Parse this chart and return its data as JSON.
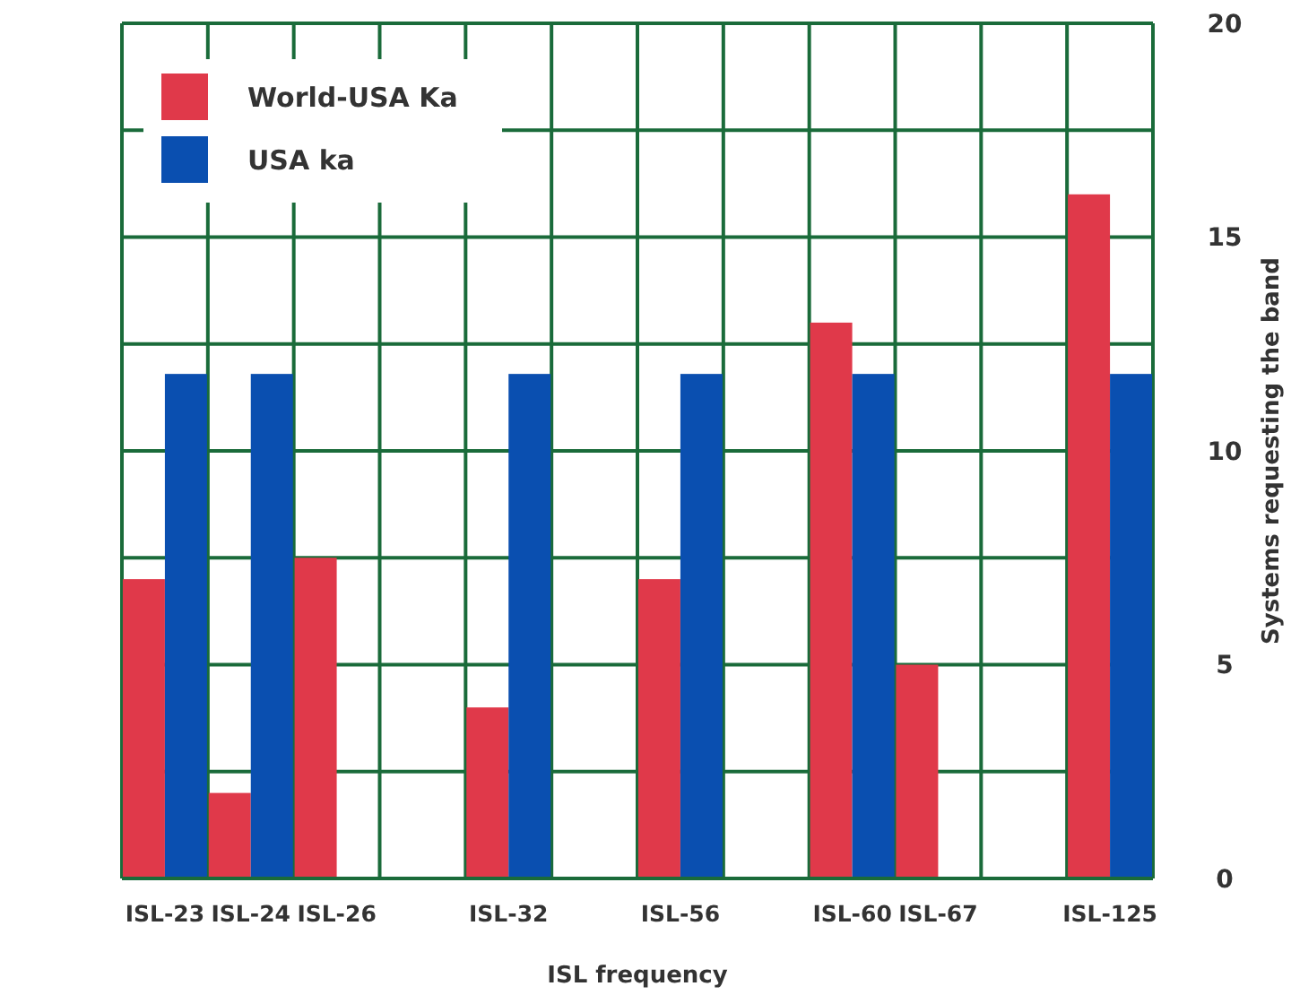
{
  "chart_data": {
    "type": "bar",
    "xlabel": "ISL frequency",
    "ylabel": "Systems requesting the band",
    "categories": [
      "ISL-23",
      "ISL-24",
      "ISL-26",
      null,
      "ISL-32",
      null,
      "ISL-56",
      null,
      "ISL-60",
      "ISL-67",
      null,
      "ISL-125"
    ],
    "series": [
      {
        "name": "World-USA Ka",
        "color": "#e0394a",
        "values": [
          7,
          2,
          7.5,
          null,
          4,
          null,
          7,
          null,
          13,
          5,
          null,
          16
        ]
      },
      {
        "name": "USA ka",
        "color": "#0a4fb0",
        "values": [
          11.8,
          11.8,
          null,
          null,
          11.8,
          null,
          11.8,
          null,
          11.8,
          null,
          null,
          11.8
        ]
      }
    ],
    "ylim": [
      0,
      20
    ],
    "yticks": [
      0,
      {
        "value": 2.5,
        "label": null
      },
      5,
      {
        "value": 7.5,
        "label": null
      },
      10,
      {
        "value": 12.5,
        "label": null
      },
      15,
      {
        "value": 17.5,
        "label": null
      },
      20
    ],
    "grid": true,
    "legend": "top left"
  }
}
